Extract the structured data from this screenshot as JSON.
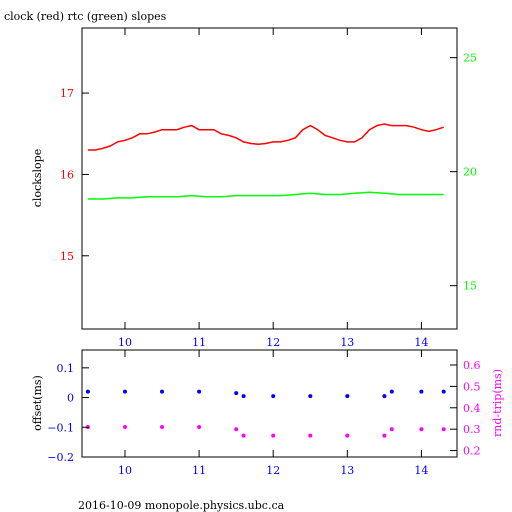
{
  "title": "clock (red) rtc (green) slopes",
  "footer": "2016-10-09  monopole.physics.ubc.ca",
  "colors": {
    "clock": "#ff0000",
    "rtc": "#00ff00",
    "offset": "#0000ff",
    "rndtrip": "#ff00ff",
    "axes": "#000000"
  },
  "chart_data": [
    {
      "type": "line",
      "xlim": [
        9.42,
        14.48
      ],
      "x_ticks": [
        10,
        11,
        12,
        13,
        14
      ],
      "x_tick_labels": [
        "10",
        "11",
        "12",
        "13",
        "14"
      ],
      "ylabel_left": "clockslope",
      "ylim_left": [
        14.1,
        17.8
      ],
      "y_ticks_left": [
        15,
        16,
        17
      ],
      "y_tick_labels_left": [
        "15",
        "16",
        "17"
      ],
      "ylim_right": [
        13.1,
        26.3
      ],
      "y_ticks_right": [
        15,
        20,
        25
      ],
      "y_tick_labels_right": [
        "15",
        "20",
        "25"
      ],
      "series": [
        {
          "axis": "left",
          "color": "#ff0000",
          "x": [
            9.5,
            9.6,
            9.7,
            9.8,
            9.9,
            10.0,
            10.1,
            10.2,
            10.3,
            10.4,
            10.5,
            10.6,
            10.7,
            10.8,
            10.9,
            11.0,
            11.1,
            11.2,
            11.3,
            11.4,
            11.5,
            11.6,
            11.7,
            11.8,
            11.9,
            12.0,
            12.1,
            12.2,
            12.3,
            12.4,
            12.5,
            12.6,
            12.7,
            12.8,
            12.9,
            13.0,
            13.1,
            13.2,
            13.3,
            13.4,
            13.5,
            13.6,
            13.7,
            13.8,
            13.9,
            14.0,
            14.1,
            14.2,
            14.3
          ],
          "y": [
            16.3,
            16.3,
            16.32,
            16.35,
            16.4,
            16.42,
            16.45,
            16.5,
            16.5,
            16.52,
            16.55,
            16.55,
            16.55,
            16.58,
            16.6,
            16.55,
            16.55,
            16.55,
            16.5,
            16.48,
            16.45,
            16.4,
            16.38,
            16.37,
            16.38,
            16.4,
            16.4,
            16.42,
            16.45,
            16.55,
            16.6,
            16.55,
            16.48,
            16.45,
            16.42,
            16.4,
            16.4,
            16.45,
            16.55,
            16.6,
            16.62,
            16.6,
            16.6,
            16.6,
            16.58,
            16.55,
            16.53,
            16.55,
            16.58
          ]
        },
        {
          "axis": "right",
          "color": "#00ff00",
          "x": [
            9.5,
            9.7,
            9.9,
            10.1,
            10.3,
            10.5,
            10.7,
            10.9,
            11.1,
            11.3,
            11.5,
            11.7,
            11.9,
            12.1,
            12.3,
            12.5,
            12.7,
            12.9,
            13.1,
            13.3,
            13.5,
            13.7,
            13.9,
            14.1,
            14.3
          ],
          "y": [
            18.8,
            18.8,
            18.85,
            18.85,
            18.9,
            18.9,
            18.9,
            18.95,
            18.9,
            18.9,
            18.95,
            18.95,
            18.95,
            18.95,
            19.0,
            19.05,
            19.0,
            19.0,
            19.05,
            19.1,
            19.05,
            19.0,
            19.0,
            19.0,
            19.0
          ]
        }
      ]
    },
    {
      "type": "scatter",
      "xlim": [
        9.42,
        14.48
      ],
      "x_ticks": [
        10,
        11,
        12,
        13,
        14
      ],
      "x_tick_labels": [
        "10",
        "11",
        "12",
        "13",
        "14"
      ],
      "ylabel_left": "offset(ms)",
      "ylim_left": [
        -0.2,
        0.16
      ],
      "y_ticks_left": [
        -0.2,
        -0.1,
        0,
        0.1
      ],
      "y_tick_labels_left": [
        "−0.2",
        "−0.1",
        "0",
        "0.1"
      ],
      "ylabel_right": "rnd-trip(ms)",
      "ylim_right": [
        0.17,
        0.67
      ],
      "y_ticks_right": [
        0.2,
        0.3,
        0.4,
        0.5,
        0.6
      ],
      "y_tick_labels_right": [
        "0.2",
        "0.3",
        "0.4",
        "0.5",
        "0.6"
      ],
      "series": [
        {
          "axis": "left",
          "color": "#0000ff",
          "x": [
            9.5,
            10.0,
            10.5,
            11.0,
            11.5,
            11.6,
            12.0,
            12.5,
            13.0,
            13.5,
            13.6,
            14.0,
            14.3
          ],
          "y": [
            0.02,
            0.02,
            0.02,
            0.02,
            0.015,
            0.005,
            0.005,
            0.005,
            0.005,
            0.005,
            0.02,
            0.02,
            0.02
          ]
        },
        {
          "axis": "right",
          "color": "#ff00ff",
          "x": [
            9.5,
            10.0,
            10.5,
            11.0,
            11.5,
            11.6,
            12.0,
            12.5,
            13.0,
            13.5,
            13.6,
            14.0,
            14.3
          ],
          "y": [
            0.31,
            0.31,
            0.31,
            0.31,
            0.3,
            0.27,
            0.27,
            0.27,
            0.27,
            0.27,
            0.3,
            0.3,
            0.3
          ]
        }
      ]
    }
  ]
}
